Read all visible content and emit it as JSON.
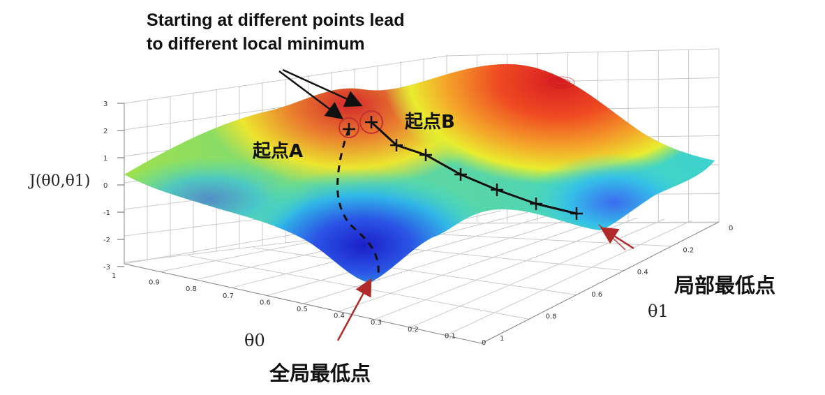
{
  "heading": {
    "line1": "Starting at different points lead",
    "line2": "to different local minimum"
  },
  "labels": {
    "start_a": "起点A",
    "start_b": "起点B",
    "local_min": "局部最低点",
    "global_min": "全局最低点"
  },
  "axes": {
    "z_label": "J(θ0,θ1)",
    "theta0_label": "θ0",
    "theta1_label": "θ1",
    "z_ticks": [
      "3",
      "2",
      "1",
      "0",
      "-1",
      "-2",
      "-3"
    ],
    "theta0_ticks": [
      "1",
      "0.9",
      "0.8",
      "0.7",
      "0.6",
      "0.5",
      "0.4",
      "0.3",
      "0.2",
      "0.1",
      "0"
    ],
    "theta1_ticks": [
      "0",
      "0.2",
      "0.4",
      "0.6",
      "0.8",
      "1"
    ]
  },
  "colors": {
    "arrow_black": "#111111",
    "arrow_red": "#b02a2a",
    "surface_high": "#e8232a",
    "surface_low": "#2a2fd8"
  }
}
